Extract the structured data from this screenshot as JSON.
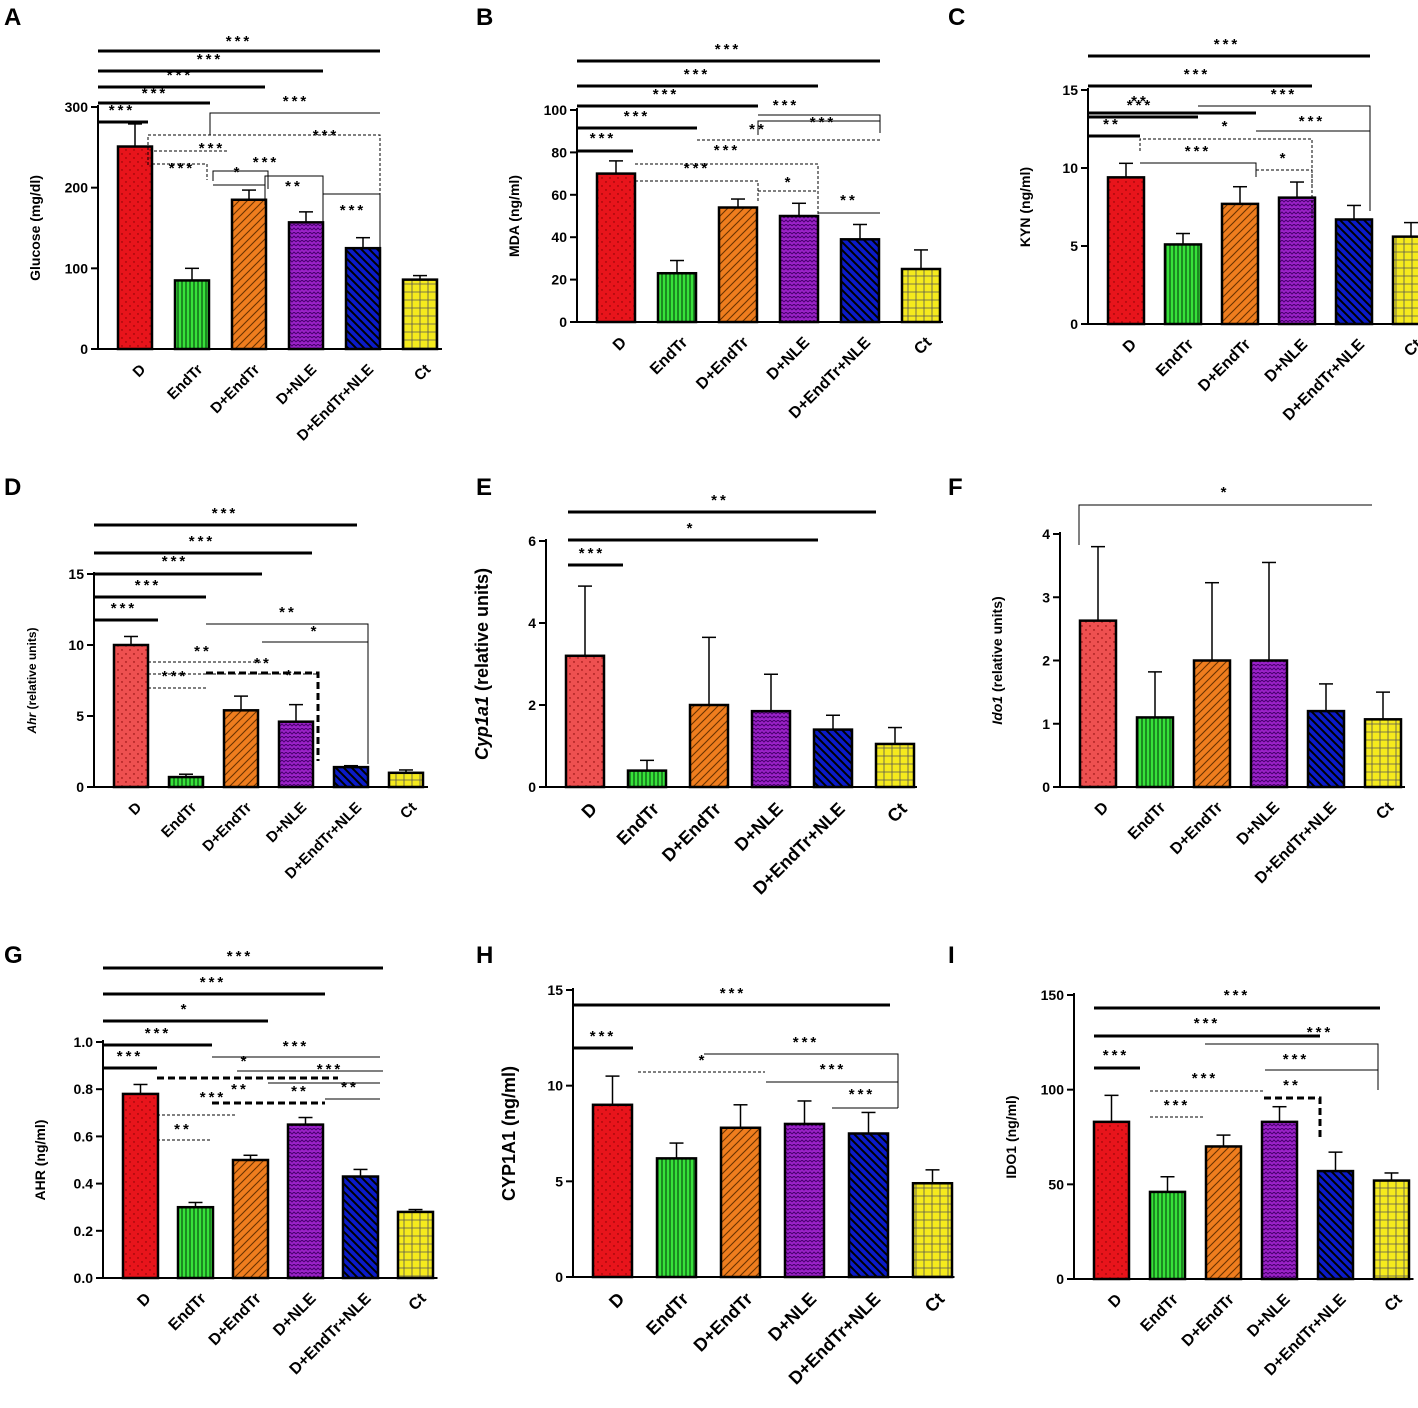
{
  "groups": [
    "D",
    "EndTr",
    "D+EndTr",
    "D+NLE",
    "D+EndTr+NLE",
    "Ct"
  ],
  "colors": {
    "D": "#e8141b",
    "EndTr": "#37e23a",
    "D+EndTr": "#ef7d1e",
    "D+NLE": "#9b22c8",
    "D+EndTr+NLE": "#0b1bc9",
    "Ct": "#f5ea1d",
    "D_light": "#ee5050"
  },
  "chart_data": [
    {
      "panel": "A",
      "type": "bar",
      "title": "",
      "xlabel": "",
      "ylabel": "Glucose (mg/dl)",
      "ylim": [
        0,
        300
      ],
      "ticks": [
        0,
        100,
        200,
        300
      ],
      "categories": [
        "D",
        "EndTr",
        "D+EndTr",
        "D+NLE",
        "D+EndTr+NLE",
        "Ct"
      ],
      "values": [
        251,
        85,
        185,
        157,
        125,
        86
      ],
      "errors": [
        28,
        15,
        12,
        13,
        13,
        5
      ],
      "significance": [
        "***",
        "***",
        "***",
        "***",
        "***",
        "***",
        "***",
        "***",
        "***",
        "***",
        "*",
        "**",
        "***"
      ]
    },
    {
      "panel": "B",
      "type": "bar",
      "title": "",
      "xlabel": "",
      "ylabel": "MDA (ng/ml)",
      "ylim": [
        0,
        100
      ],
      "ticks": [
        0,
        20,
        40,
        60,
        80,
        100
      ],
      "categories": [
        "D",
        "EndTr",
        "D+EndTr",
        "D+NLE",
        "D+EndTr+NLE",
        "Ct"
      ],
      "values": [
        70,
        23,
        54,
        50,
        39,
        25
      ],
      "errors": [
        6,
        6,
        4,
        6,
        7,
        9
      ],
      "significance": [
        "***",
        "***",
        "***",
        "***",
        "***",
        "***",
        "**",
        "***",
        "***",
        "***",
        "*",
        "**"
      ]
    },
    {
      "panel": "C",
      "type": "bar",
      "title": "",
      "xlabel": "",
      "ylabel": "KYN (ng/ml)",
      "ylim": [
        0,
        15
      ],
      "ticks": [
        0,
        5,
        10,
        15
      ],
      "categories": [
        "D",
        "EndTr",
        "D+EndTr",
        "D+NLE",
        "D+EndTr+NLE",
        "Ct"
      ],
      "values": [
        9.4,
        5.1,
        7.7,
        8.1,
        6.7,
        5.6
      ],
      "errors": [
        0.9,
        0.7,
        1.1,
        1.0,
        0.9,
        0.9
      ],
      "significance": [
        "***",
        "***",
        "**",
        "***",
        "**",
        "***",
        "*",
        "***",
        "***",
        "*"
      ]
    },
    {
      "panel": "D",
      "type": "bar",
      "title": "",
      "xlabel": "",
      "ylabel_italic": "Ahr",
      "ylabel_rest": " (relative units)",
      "ylim": [
        0,
        15
      ],
      "ticks": [
        0,
        5,
        10,
        15
      ],
      "categories": [
        "D",
        "EndTr",
        "D+EndTr",
        "D+NLE",
        "D+EndTr+NLE",
        "Ct"
      ],
      "values": [
        10.0,
        0.7,
        5.4,
        4.6,
        1.4,
        1.0
      ],
      "errors": [
        0.6,
        0.2,
        1.0,
        1.2,
        0.1,
        0.2
      ],
      "significance": [
        "***",
        "***",
        "***",
        "***",
        "***",
        "**",
        "*",
        "**",
        "**",
        "***",
        "*"
      ]
    },
    {
      "panel": "E",
      "type": "bar",
      "title": "",
      "xlabel": "",
      "ylabel_italic": "Cyp1a1",
      "ylabel_rest": " (relative units)",
      "ylim": [
        0,
        6
      ],
      "ticks": [
        0,
        2,
        4,
        6
      ],
      "categories": [
        "D",
        "EndTr",
        "D+EndTr",
        "D+NLE",
        "D+EndTr+NLE",
        "Ct"
      ],
      "values": [
        3.2,
        0.4,
        2.0,
        1.85,
        1.4,
        1.05
      ],
      "errors": [
        1.7,
        0.25,
        1.65,
        0.9,
        0.35,
        0.4
      ],
      "significance": [
        "**",
        "*",
        "***"
      ]
    },
    {
      "panel": "F",
      "type": "bar",
      "title": "",
      "xlabel": "",
      "ylabel_italic": "Ido1",
      "ylabel_rest": " (relative units)",
      "ylim": [
        0,
        4
      ],
      "ticks": [
        0,
        1,
        2,
        3,
        4
      ],
      "categories": [
        "D",
        "EndTr",
        "D+EndTr",
        "D+NLE",
        "D+EndTr+NLE",
        "Ct"
      ],
      "values": [
        2.63,
        1.1,
        2.0,
        2.0,
        1.2,
        1.07
      ],
      "errors": [
        1.17,
        0.72,
        1.23,
        1.55,
        0.43,
        0.43
      ],
      "significance": [
        "*"
      ]
    },
    {
      "panel": "G",
      "type": "bar",
      "title": "",
      "xlabel": "",
      "ylabel": "AHR (ng/ml)",
      "ylim": [
        0,
        1.0
      ],
      "ticks": [
        0.0,
        0.2,
        0.4,
        0.6,
        0.8,
        1.0
      ],
      "categories": [
        "D",
        "EndTr",
        "D+EndTr",
        "D+NLE",
        "D+EndTr+NLE",
        "Ct"
      ],
      "values": [
        0.78,
        0.3,
        0.5,
        0.65,
        0.43,
        0.28
      ],
      "errors": [
        0.04,
        0.02,
        0.02,
        0.03,
        0.03,
        0.01
      ],
      "significance": [
        "***",
        "***",
        "*",
        "***",
        "***",
        "***",
        "*",
        "***",
        "***",
        "**",
        "**",
        "**",
        "**"
      ]
    },
    {
      "panel": "H",
      "type": "bar",
      "title": "",
      "xlabel": "",
      "ylabel": "CYP1A1 (ng/ml)",
      "ylim": [
        0,
        15
      ],
      "ticks": [
        0,
        5,
        10,
        15
      ],
      "categories": [
        "D",
        "EndTr",
        "D+EndTr",
        "D+NLE",
        "D+EndTr+NLE",
        "Ct"
      ],
      "values": [
        9.0,
        6.2,
        7.8,
        8.0,
        7.5,
        4.9
      ],
      "errors": [
        1.5,
        0.8,
        1.2,
        1.2,
        1.1,
        0.7
      ],
      "significance": [
        "***",
        "***",
        "***",
        "*",
        "***",
        "***"
      ]
    },
    {
      "panel": "I",
      "type": "bar",
      "title": "",
      "xlabel": "",
      "ylabel": "IDO1 (ng/ml)",
      "ylim": [
        0,
        150
      ],
      "ticks": [
        0,
        50,
        100,
        150
      ],
      "categories": [
        "D",
        "EndTr",
        "D+EndTr",
        "D+NLE",
        "D+EndTr+NLE",
        "Ct"
      ],
      "values": [
        83,
        46,
        70,
        83,
        57,
        52
      ],
      "errors": [
        14,
        8,
        6,
        8,
        10,
        4
      ],
      "significance": [
        "***",
        "***",
        "***",
        "***",
        "***",
        "***",
        "***",
        "**"
      ]
    }
  ]
}
